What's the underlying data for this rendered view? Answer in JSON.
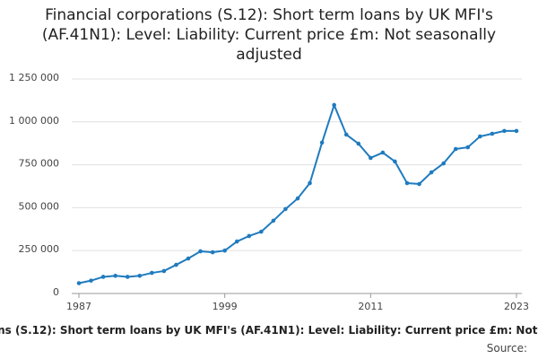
{
  "chart_data": {
    "type": "line",
    "title": "Financial corporations (S.12): Short term loans by UK MFI's (AF.41N1): Level: Liability: Current price £m: Not seasonally adjusted",
    "source": "Source:",
    "x": [
      1987,
      1988,
      1989,
      1990,
      1991,
      1992,
      1993,
      1994,
      1995,
      1996,
      1997,
      1998,
      1999,
      2000,
      2001,
      2002,
      2003,
      2004,
      2005,
      2006,
      2007,
      2008,
      2009,
      2010,
      2011,
      2012,
      2013,
      2014,
      2015,
      2016,
      2017,
      2018,
      2019,
      2020,
      2021,
      2022,
      2023
    ],
    "series": [
      {
        "name": "Short term loans",
        "color": "#1f7bbf",
        "values": [
          60000,
          75000,
          97000,
          103000,
          97000,
          103000,
          120000,
          131000,
          167000,
          204000,
          246000,
          240000,
          250000,
          303000,
          335000,
          360000,
          424000,
          492000,
          554000,
          643000,
          879000,
          1098000,
          926000,
          873000,
          790000,
          821000,
          769000,
          643000,
          638000,
          706000,
          758000,
          842000,
          852000,
          915000,
          931000,
          947000,
          947000
        ]
      }
    ],
    "xlim": [
      1987,
      2023
    ],
    "xticks": [
      1987,
      1999,
      2011,
      2023
    ],
    "ylim": [
      0,
      1250000
    ],
    "yticks": [
      0,
      {
        "value": 250000,
        "label": "250 000"
      },
      {
        "value": 500000,
        "label": "500 000"
      },
      {
        "value": 750000,
        "label": "750 000"
      },
      {
        "value": 1000000,
        "label": "1 000 000"
      },
      {
        "value": 1250000,
        "label": "1 250 000"
      }
    ],
    "grid": true
  }
}
